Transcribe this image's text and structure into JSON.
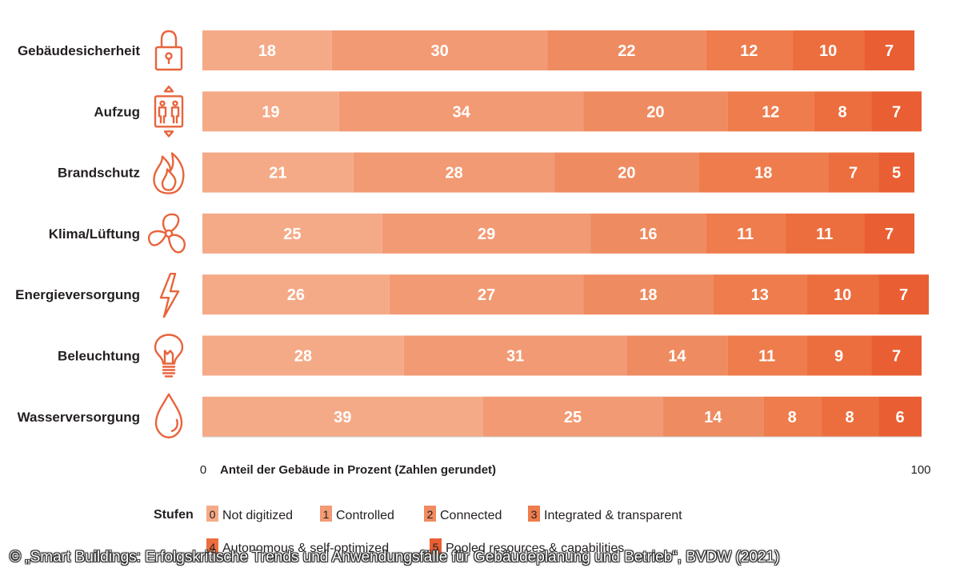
{
  "chart_data": {
    "type": "stacked-bar-horizontal",
    "categories": [
      "Gebäudesicherheit",
      "Aufzug",
      "Brandschutz",
      "Klima/Lüftung",
      "Energieversorgung",
      "Beleuchtung",
      "Wasserversorgung"
    ],
    "icons": [
      "padlock-icon",
      "elevator-icon",
      "flame-icon",
      "fan-icon",
      "lightning-icon",
      "lightbulb-icon",
      "water-drop-icon"
    ],
    "series": [
      {
        "level": "0",
        "name": "Not digitized",
        "color": "#f5aa87",
        "values": [
          18,
          19,
          21,
          25,
          26,
          28,
          39
        ]
      },
      {
        "level": "1",
        "name": "Controlled",
        "color": "#f29a73",
        "values": [
          30,
          34,
          28,
          29,
          27,
          31,
          25
        ]
      },
      {
        "level": "2",
        "name": "Connected",
        "color": "#ef8b60",
        "values": [
          22,
          20,
          20,
          16,
          18,
          14,
          14
        ]
      },
      {
        "level": "3",
        "name": "Integrated & transparent",
        "color": "#ee7c4c",
        "values": [
          12,
          12,
          18,
          11,
          13,
          11,
          8
        ]
      },
      {
        "level": "4",
        "name": "Autonomous & self-optimized",
        "color": "#ec6e3e",
        "values": [
          10,
          8,
          7,
          11,
          10,
          9,
          8
        ]
      },
      {
        "level": "5",
        "name": "Pooled resources & capabilities",
        "color": "#e95f33",
        "values": [
          7,
          7,
          5,
          7,
          7,
          7,
          6
        ]
      }
    ],
    "xlim": [
      0,
      100
    ],
    "x_tick_min": "0",
    "x_tick_max": "100",
    "xlabel": "Anteil der Gebäude in Prozent (Zahlen gerundet)",
    "legend_title": "Stufen",
    "legend_position": "bottom"
  },
  "copyright": "© „Smart Buildings: Erfolgskritische Trends und Anwendungsfälle für Gebäudeplanung und Betrieb“, BVDW (2021)"
}
